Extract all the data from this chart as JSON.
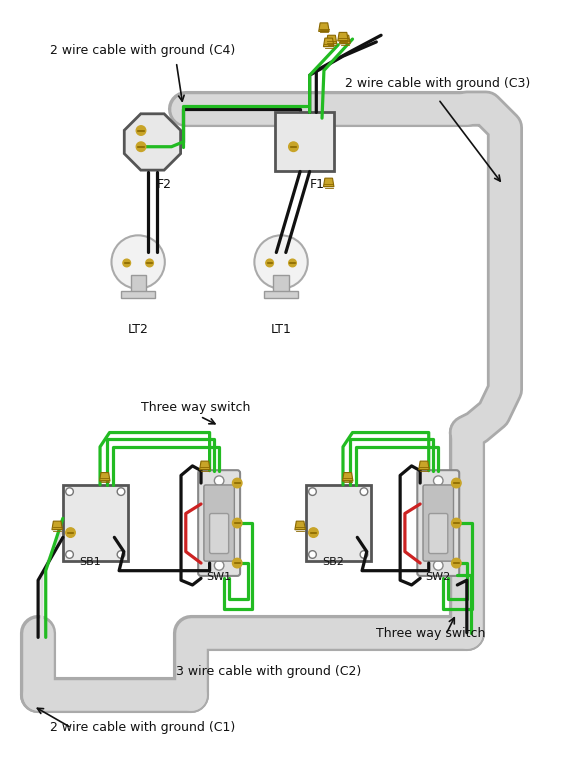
{
  "bg_color": "#ffffff",
  "wire_black": "#111111",
  "wire_green": "#22bb22",
  "wire_red": "#cc2222",
  "wire_white": "#dddddd",
  "gold_color": "#c8a428",
  "conduit_outer": "#aaaaaa",
  "conduit_inner": "#d8d8d8",
  "box_fill": "#e8e8e8",
  "box_edge": "#555555",
  "switch_plate_fill": "#e0e0e0",
  "switch_plate_edge": "#888888",
  "switch_body_fill": "#c8c8c8",
  "switch_toggle_fill": "#b8b8b8",
  "lamp_fill": "#eeeeee",
  "lamp_edge": "#aaaaaa",
  "text_color": "#111111",
  "labels": {
    "C4": "2 wire cable with ground (C4)",
    "C3": "2 wire cable with ground (C3)",
    "C2": "3 wire cable with ground (C2)",
    "C1": "2 wire cable with ground (C1)",
    "SW1_label": "Three way switch",
    "SW2_label": "Three way switch",
    "F1": "F1",
    "F2": "F2",
    "LT1": "LT1",
    "LT2": "LT2",
    "SB1": "SB1",
    "SB2": "SB2",
    "SW1": "SW1",
    "SW2": "SW2"
  }
}
